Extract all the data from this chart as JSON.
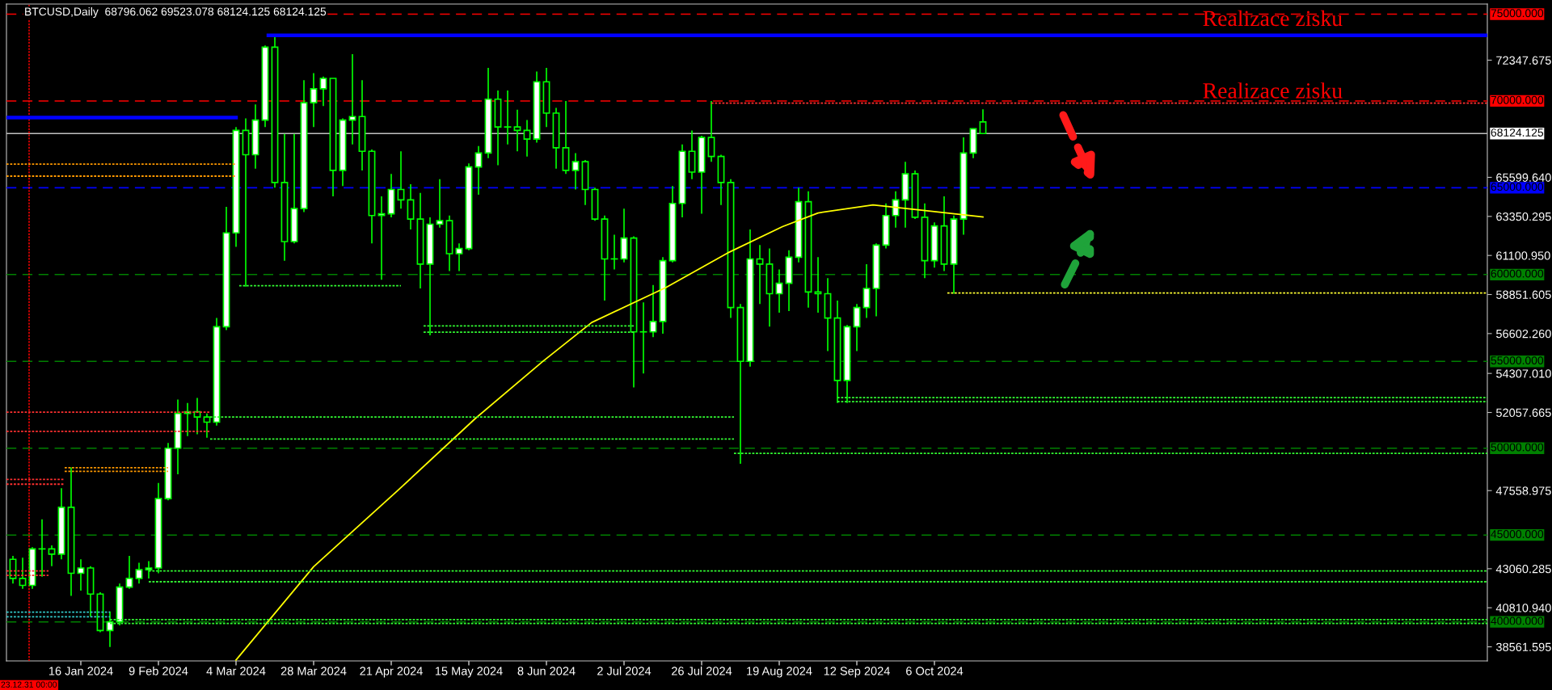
{
  "chart_data": {
    "type": "candlestick",
    "title": "BTCUSD,Daily  68796.062 69523.078 68124.125 68124.125",
    "color": "#00ff00",
    "grid": false,
    "legend": false,
    "x": [
      "2023-12-26",
      "2023-12-29",
      "2024-01-01",
      "2024-01-04",
      "2024-01-07",
      "2024-01-10",
      "2024-01-13",
      "2024-01-16",
      "2024-01-19",
      "2024-01-22",
      "2024-01-25",
      "2024-01-28",
      "2024-01-31",
      "2024-02-03",
      "2024-02-06",
      "2024-02-09",
      "2024-02-12",
      "2024-02-15",
      "2024-02-18",
      "2024-02-21",
      "2024-02-24",
      "2024-02-27",
      "2024-03-01",
      "2024-03-04",
      "2024-03-07",
      "2024-03-10",
      "2024-03-13",
      "2024-03-16",
      "2024-03-19",
      "2024-03-22",
      "2024-03-25",
      "2024-03-28",
      "2024-03-31",
      "2024-04-03",
      "2024-04-06",
      "2024-04-09",
      "2024-04-12",
      "2024-04-15",
      "2024-04-18",
      "2024-04-21",
      "2024-04-24",
      "2024-04-27",
      "2024-04-30",
      "2024-05-03",
      "2024-05-06",
      "2024-05-09",
      "2024-05-12",
      "2024-05-15",
      "2024-05-18",
      "2024-05-21",
      "2024-05-24",
      "2024-05-27",
      "2024-05-30",
      "2024-06-02",
      "2024-06-05",
      "2024-06-08",
      "2024-06-11",
      "2024-06-14",
      "2024-06-17",
      "2024-06-20",
      "2024-06-23",
      "2024-06-26",
      "2024-06-29",
      "2024-07-02",
      "2024-07-05",
      "2024-07-08",
      "2024-07-11",
      "2024-07-14",
      "2024-07-17",
      "2024-07-20",
      "2024-07-23",
      "2024-07-26",
      "2024-07-29",
      "2024-08-01",
      "2024-08-04",
      "2024-08-07",
      "2024-08-10",
      "2024-08-13",
      "2024-08-16",
      "2024-08-19",
      "2024-08-22",
      "2024-08-25",
      "2024-08-28",
      "2024-08-31",
      "2024-09-03",
      "2024-09-06",
      "2024-09-09",
      "2024-09-12",
      "2024-09-15",
      "2024-09-18",
      "2024-09-21",
      "2024-09-24",
      "2024-09-27",
      "2024-09-30",
      "2024-10-03",
      "2024-10-06",
      "2024-10-09",
      "2024-10-12",
      "2024-10-15",
      "2024-10-18",
      "2024-10-21"
    ],
    "ohlc": [
      [
        43600,
        43800,
        42200,
        42500
      ],
      [
        42500,
        43700,
        41900,
        42100
      ],
      [
        42100,
        44300,
        41900,
        44200
      ],
      [
        44200,
        45900,
        42600,
        44200
      ],
      [
        44200,
        44400,
        43200,
        43900
      ],
      [
        43900,
        47700,
        43600,
        46600
      ],
      [
        46600,
        48900,
        41500,
        42800
      ],
      [
        42800,
        43600,
        41800,
        43100
      ],
      [
        43100,
        43200,
        40300,
        41600
      ],
      [
        41600,
        41700,
        39400,
        39500
      ],
      [
        39500,
        40600,
        38550,
        40000
      ],
      [
        40000,
        42200,
        39800,
        42000
      ],
      [
        42000,
        43800,
        41900,
        42500
      ],
      [
        42500,
        43400,
        42200,
        43000
      ],
      [
        43000,
        43500,
        42500,
        43100
      ],
      [
        43100,
        48000,
        42800,
        47100
      ],
      [
        47100,
        50300,
        47000,
        50000
      ],
      [
        50000,
        52800,
        48500,
        52000
      ],
      [
        52000,
        52600,
        50700,
        52100
      ],
      [
        52100,
        52900,
        50800,
        51800
      ],
      [
        51800,
        52000,
        50600,
        51500
      ],
      [
        51500,
        57500,
        51300,
        57000
      ],
      [
        57000,
        63900,
        56800,
        62400
      ],
      [
        62400,
        68500,
        61600,
        68300
      ],
      [
        68300,
        69000,
        59300,
        66900
      ],
      [
        66900,
        69800,
        66100,
        68900
      ],
      [
        68900,
        73200,
        68500,
        73100
      ],
      [
        73100,
        73800,
        65000,
        65300
      ],
      [
        65300,
        68100,
        60800,
        61900
      ],
      [
        61900,
        68100,
        61800,
        63800
      ],
      [
        63800,
        71200,
        63600,
        69900
      ],
      [
        69900,
        71600,
        68500,
        70700
      ],
      [
        70700,
        71400,
        69700,
        71300
      ],
      [
        71300,
        71300,
        64500,
        66000
      ],
      [
        66000,
        69000,
        65100,
        68900
      ],
      [
        68900,
        72700,
        67500,
        69100
      ],
      [
        69100,
        71200,
        66000,
        67100
      ],
      [
        67100,
        67200,
        61800,
        63400
      ],
      [
        63400,
        64500,
        59700,
        63500
      ],
      [
        63500,
        65800,
        63300,
        64900
      ],
      [
        64900,
        67100,
        63800,
        64300
      ],
      [
        64300,
        65200,
        62600,
        63200
      ],
      [
        63200,
        64700,
        59200,
        60600
      ],
      [
        60600,
        63300,
        56500,
        62900
      ],
      [
        62900,
        65500,
        62700,
        63100
      ],
      [
        63100,
        63400,
        60200,
        61200
      ],
      [
        61200,
        61800,
        60200,
        61500
      ],
      [
        61500,
        66400,
        61400,
        66200
      ],
      [
        66200,
        67400,
        64600,
        67000
      ],
      [
        67000,
        71900,
        66700,
        70100
      ],
      [
        70100,
        70600,
        66300,
        68500
      ],
      [
        68500,
        70600,
        67500,
        68500
      ],
      [
        68500,
        69500,
        67100,
        68300
      ],
      [
        68300,
        68900,
        66800,
        67800
      ],
      [
        67800,
        71700,
        67600,
        71100
      ],
      [
        71100,
        71900,
        68500,
        69300
      ],
      [
        69300,
        69600,
        66100,
        67300
      ],
      [
        67300,
        70000,
        65800,
        66000
      ],
      [
        66000,
        67000,
        64900,
        66500
      ],
      [
        66500,
        66600,
        64000,
        64900
      ],
      [
        64900,
        65000,
        63100,
        63200
      ],
      [
        63200,
        63400,
        58500,
        60900
      ],
      [
        60900,
        62300,
        60300,
        60900
      ],
      [
        60900,
        63800,
        60700,
        62100
      ],
      [
        62100,
        62200,
        53500,
        56700
      ],
      [
        56700,
        58400,
        54300,
        56700
      ],
      [
        56700,
        59400,
        56400,
        57300
      ],
      [
        57300,
        61000,
        56600,
        60800
      ],
      [
        60800,
        65100,
        60700,
        64100
      ],
      [
        64100,
        67500,
        63300,
        67100
      ],
      [
        67100,
        68300,
        65500,
        65900
      ],
      [
        65900,
        68000,
        63500,
        67900
      ],
      [
        67900,
        70000,
        66500,
        66800
      ],
      [
        66800,
        66900,
        64000,
        65300
      ],
      [
        65300,
        65500,
        57500,
        58100
      ],
      [
        58100,
        58300,
        49100,
        55000
      ],
      [
        55000,
        62600,
        54700,
        60900
      ],
      [
        60900,
        61700,
        58300,
        60600
      ],
      [
        60600,
        61500,
        57000,
        58900
      ],
      [
        58900,
        60300,
        57800,
        59500
      ],
      [
        59500,
        61400,
        57900,
        61000
      ],
      [
        61000,
        65000,
        60700,
        64200
      ],
      [
        64200,
        64800,
        58100,
        59000
      ],
      [
        59000,
        61000,
        57800,
        58900
      ],
      [
        58900,
        59800,
        55600,
        57500
      ],
      [
        57500,
        58500,
        52600,
        53900
      ],
      [
        53900,
        57100,
        52600,
        57000
      ],
      [
        57000,
        58300,
        55600,
        58100
      ],
      [
        58100,
        60600,
        57500,
        59200
      ],
      [
        59200,
        61800,
        57600,
        61700
      ],
      [
        61700,
        64100,
        61500,
        63400
      ],
      [
        63400,
        64800,
        62700,
        64300
      ],
      [
        64300,
        66500,
        62700,
        65800
      ],
      [
        65800,
        66000,
        63200,
        63300
      ],
      [
        63300,
        64100,
        59800,
        60800
      ],
      [
        60800,
        63000,
        60400,
        62800
      ],
      [
        62800,
        64500,
        60200,
        60600
      ],
      [
        60600,
        63400,
        58900,
        63200
      ],
      [
        63200,
        67900,
        62300,
        67000
      ],
      [
        67000,
        68400,
        66700,
        68400
      ],
      [
        68796.062,
        69523.078,
        68124.125,
        68124.125
      ]
    ],
    "series": [
      {
        "type": "line",
        "color": "#ffff00",
        "line_style": "solid",
        "x": [
          "2024-03-04",
          "2024-03-28",
          "2024-04-23",
          "2024-05-17",
          "2024-06-07",
          "2024-06-22",
          "2024-07-15",
          "2024-08-03",
          "2024-08-20",
          "2024-08-31",
          "2024-09-17",
          "2024-10-02",
          "2024-10-21"
        ],
        "values": [
          37800,
          43180,
          47560,
          51710,
          55020,
          57240,
          59260,
          61240,
          62760,
          63550,
          64010,
          63710,
          63320
        ]
      },
      {
        "type": "line",
        "color": "#0000ff",
        "line_style": "solid",
        "x": [
          "2024-03-14",
          "2025-03-26"
        ],
        "values": [
          73780,
          73780
        ]
      },
      {
        "type": "line",
        "color": "#0000ff",
        "line_style": "solid",
        "x": [
          "2023-12-24",
          "2024-03-04"
        ],
        "values": [
          69040,
          69040
        ]
      },
      {
        "type": "line",
        "color": "#ff9900",
        "line_style": "dotted",
        "x": [
          "2023-12-24",
          "2024-03-04"
        ],
        "values": [
          66360,
          66360
        ]
      },
      {
        "type": "line",
        "color": "#ff9900",
        "line_style": "dotted",
        "x": [
          "2023-12-24",
          "2024-03-04"
        ],
        "values": [
          65670,
          65670
        ]
      },
      {
        "type": "line",
        "color": "#ff3030",
        "line_style": "dotted",
        "x": [
          "2023-12-24",
          "2024-02-25"
        ],
        "values": [
          52080,
          52080
        ]
      },
      {
        "type": "line",
        "color": "#ff3030",
        "line_style": "dotted",
        "x": [
          "2023-12-24",
          "2024-02-25"
        ],
        "values": [
          50970,
          50970
        ]
      },
      {
        "type": "line",
        "color": "#ff9900",
        "line_style": "dotted",
        "x": [
          "2024-01-11",
          "2024-02-12"
        ],
        "values": [
          48880,
          48880
        ]
      },
      {
        "type": "line",
        "color": "#ff9900",
        "line_style": "dotted",
        "x": [
          "2024-01-11",
          "2024-02-12"
        ],
        "values": [
          48670,
          48670
        ]
      },
      {
        "type": "line",
        "color": "#ff3030",
        "line_style": "dotted",
        "x": [
          "2023-12-24",
          "2024-01-11"
        ],
        "values": [
          48200,
          48200
        ]
      },
      {
        "type": "line",
        "color": "#ff3030",
        "line_style": "dotted",
        "x": [
          "2023-12-24",
          "2024-01-11"
        ],
        "values": [
          47930,
          47930
        ]
      },
      {
        "type": "line",
        "color": "#ff3030",
        "line_style": "dotted",
        "x": [
          "2023-12-24",
          "2024-01-06"
        ],
        "values": [
          42930,
          42930
        ]
      },
      {
        "type": "line",
        "color": "#ff3030",
        "line_style": "dotted",
        "x": [
          "2023-12-24",
          "2024-01-06"
        ],
        "values": [
          42680,
          42680
        ]
      },
      {
        "type": "line",
        "color": "#33ff33",
        "line_style": "dotted",
        "x": [
          "2024-02-06",
          "2025-03-26"
        ],
        "values": [
          42930,
          42930
        ]
      },
      {
        "type": "line",
        "color": "#33ff33",
        "line_style": "dotted",
        "x": [
          "2024-02-06",
          "2025-03-26"
        ],
        "values": [
          42310,
          42310
        ]
      },
      {
        "type": "line",
        "color": "#33cccc",
        "line_style": "dotted",
        "x": [
          "2023-12-24",
          "2024-01-25"
        ],
        "values": [
          40560,
          40560
        ]
      },
      {
        "type": "line",
        "color": "#33cccc",
        "line_style": "dotted",
        "x": [
          "2023-12-24",
          "2024-01-25"
        ],
        "values": [
          40290,
          40290
        ]
      },
      {
        "type": "line",
        "color": "#33ff33",
        "line_style": "dotted",
        "x": [
          "2024-01-25",
          "2025-03-26"
        ],
        "values": [
          40130,
          40130
        ]
      },
      {
        "type": "line",
        "color": "#33ff33",
        "line_style": "dotted",
        "x": [
          "2024-01-25",
          "2025-03-26"
        ],
        "values": [
          39910,
          39910
        ]
      },
      {
        "type": "line",
        "color": "#33ff33",
        "line_style": "dotted",
        "x": [
          "2024-03-05",
          "2024-04-24"
        ],
        "values": [
          59360,
          59360
        ]
      },
      {
        "type": "line",
        "color": "#33ff33",
        "line_style": "dotted",
        "x": [
          "2024-02-25",
          "2024-08-05"
        ],
        "values": [
          51800,
          51800
        ]
      },
      {
        "type": "line",
        "color": "#33ff33",
        "line_style": "dotted",
        "x": [
          "2024-02-25",
          "2024-08-05"
        ],
        "values": [
          50530,
          50530
        ]
      },
      {
        "type": "line",
        "color": "#33ff33",
        "line_style": "dotted",
        "x": [
          "2024-05-01",
          "2024-07-05"
        ],
        "values": [
          57040,
          57040
        ]
      },
      {
        "type": "line",
        "color": "#33ff33",
        "line_style": "dotted",
        "x": [
          "2024-05-01",
          "2024-07-05"
        ],
        "values": [
          56680,
          56680
        ]
      },
      {
        "type": "line",
        "color": "#ff3030",
        "line_style": "dotted",
        "x": [
          "2024-07-29",
          "2025-03-26"
        ],
        "values": [
          69870,
          69870
        ]
      },
      {
        "type": "line",
        "color": "#33ff33",
        "line_style": "dotted",
        "x": [
          "2024-08-05",
          "2025-03-26"
        ],
        "values": [
          49700,
          49700
        ]
      },
      {
        "type": "line",
        "color": "#33ff33",
        "line_style": "dotted",
        "x": [
          "2024-09-06",
          "2025-03-26"
        ],
        "values": [
          52910,
          52910
        ]
      },
      {
        "type": "line",
        "color": "#33ff33",
        "line_style": "dotted",
        "x": [
          "2024-09-06",
          "2025-03-26"
        ],
        "values": [
          52680,
          52680
        ]
      },
      {
        "type": "line",
        "color": "#ffff33",
        "line_style": "dotted",
        "x": [
          "2024-10-10",
          "2025-03-26"
        ],
        "values": [
          58940,
          58940
        ]
      }
    ],
    "ref_lines": [
      {
        "axis": "y",
        "value": 75000,
        "label": "75000.000",
        "color": "#ff0000",
        "line_style": "dashed"
      },
      {
        "axis": "y",
        "value": 70000,
        "label": "70000.000",
        "color": "#ff0000",
        "line_style": "dashed"
      },
      {
        "axis": "y",
        "value": 68124.125,
        "label": "68124.125",
        "color": "#c0c0c0",
        "line_style": "solid"
      },
      {
        "axis": "y",
        "value": 65000,
        "label": "65000.000",
        "color": "#0000ff",
        "line_style": "dashed"
      },
      {
        "axis": "y",
        "value": 60000,
        "label": "60000.000",
        "color": "#008000",
        "line_style": "dashed"
      },
      {
        "axis": "y",
        "value": 55000,
        "label": "55000.000",
        "color": "#008000",
        "line_style": "dashed"
      },
      {
        "axis": "y",
        "value": 50000,
        "label": "50000.000",
        "color": "#008000",
        "line_style": "dashed"
      },
      {
        "axis": "y",
        "value": 45000,
        "label": "45000.000",
        "color": "#008000",
        "line_style": "dashed"
      },
      {
        "axis": "y",
        "value": 40000,
        "label": "40000.000",
        "color": "#008000",
        "line_style": "dashed"
      },
      {
        "axis": "x",
        "value": "2023-12-31",
        "label": "23.12.31 00:00",
        "color": "#ff0000",
        "line_style": "dotted"
      }
    ],
    "annotations": [
      "Realizace zisku",
      "Realizace zisku"
    ],
    "xlim": [
      "2023-12-24",
      "2025-03-26"
    ],
    "xticks": [
      {
        "value": "2024-01-16",
        "label": "16 Jan 2024"
      },
      {
        "value": "2024-02-09",
        "label": "9 Feb 2024"
      },
      {
        "value": "2024-03-04",
        "label": "4 Mar 2024"
      },
      {
        "value": "2024-03-28",
        "label": "28 Mar 2024"
      },
      {
        "value": "2024-04-21",
        "label": "21 Apr 2024"
      },
      {
        "value": "2024-05-15",
        "label": "15 May 2024"
      },
      {
        "value": "2024-06-08",
        "label": "8 Jun 2024"
      },
      {
        "value": "2024-07-02",
        "label": "2 Jul 2024"
      },
      {
        "value": "2024-07-26",
        "label": "26 Jul 2024"
      },
      {
        "value": "2024-08-19",
        "label": "19 Aug 2024"
      },
      {
        "value": "2024-09-12",
        "label": "12 Sep 2024"
      },
      {
        "value": "2024-10-06",
        "label": "6 Oct 2024"
      }
    ],
    "ylim": [
      37750,
      75580
    ],
    "yticks": [
      {
        "value": 38561.595,
        "label": "38561.595"
      },
      {
        "value": 40810.94,
        "label": "40810.940"
      },
      {
        "value": 43060.285,
        "label": "43060.285"
      },
      {
        "value": 47558.975,
        "label": "47558.975"
      },
      {
        "value": 52057.665,
        "label": "52057.665"
      },
      {
        "value": 54307.01,
        "label": "54307.010"
      },
      {
        "value": 56602.26,
        "label": "56602.260"
      },
      {
        "value": 58851.605,
        "label": "58851.605"
      },
      {
        "value": 61100.95,
        "label": "61100.950"
      },
      {
        "value": 63350.295,
        "label": "63350.295"
      },
      {
        "value": 65599.64,
        "label": "65599.640"
      },
      {
        "value": 72347.675,
        "label": "72347.675"
      }
    ]
  }
}
